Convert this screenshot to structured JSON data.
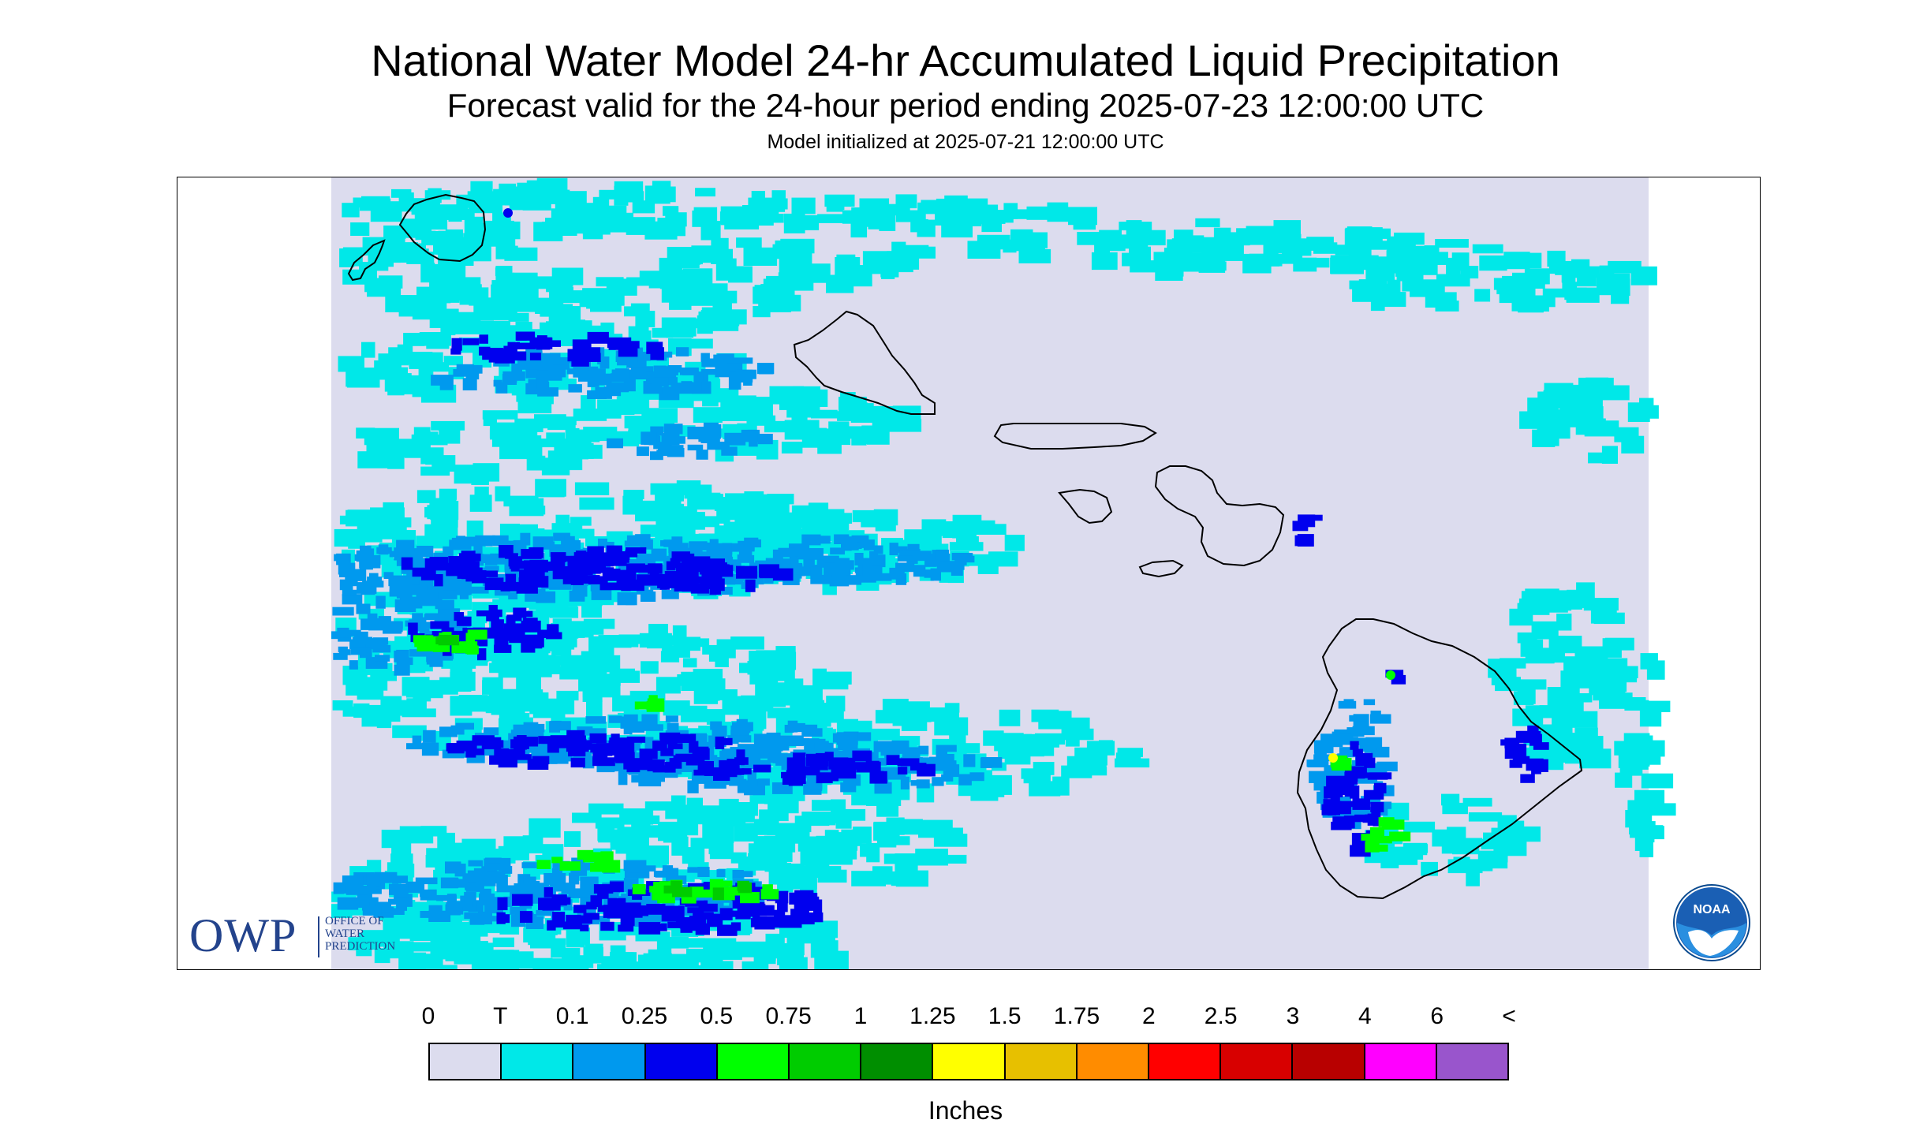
{
  "header": {
    "title": "National Water Model 24-hr Accumulated Liquid Precipitation",
    "subtitle": "Forecast valid for the 24-hour period ending 2025-07-23 12:00:00 UTC",
    "init_line": "Model initialized at 2025-07-21 12:00:00 UTC"
  },
  "map": {
    "region": "Hawaiian Islands",
    "background_color": "#dcdcee",
    "coastline_color": "#000000"
  },
  "logos": {
    "owp_big": "OWP",
    "owp_line1": "OFFICE OF",
    "owp_line2": "WATER",
    "owp_line3": "PREDICTION",
    "noaa_icon": "noaa-logo-icon",
    "noaa_text": "NOAA"
  },
  "legend": {
    "units": "Inches",
    "ticks": [
      "0",
      "T",
      "0.1",
      "0.25",
      "0.5",
      "0.75",
      "1",
      "1.25",
      "1.5",
      "1.75",
      "2",
      "2.5",
      "3",
      "4",
      "6",
      "<"
    ],
    "colors": [
      "#dcdcee",
      "#00e8e8",
      "#0099ee",
      "#0000ee",
      "#00ff00",
      "#00cc00",
      "#008e00",
      "#ffff00",
      "#e7c000",
      "#ff8c00",
      "#ff0000",
      "#d80000",
      "#b80000",
      "#ff00ff",
      "#9955cc"
    ]
  }
}
